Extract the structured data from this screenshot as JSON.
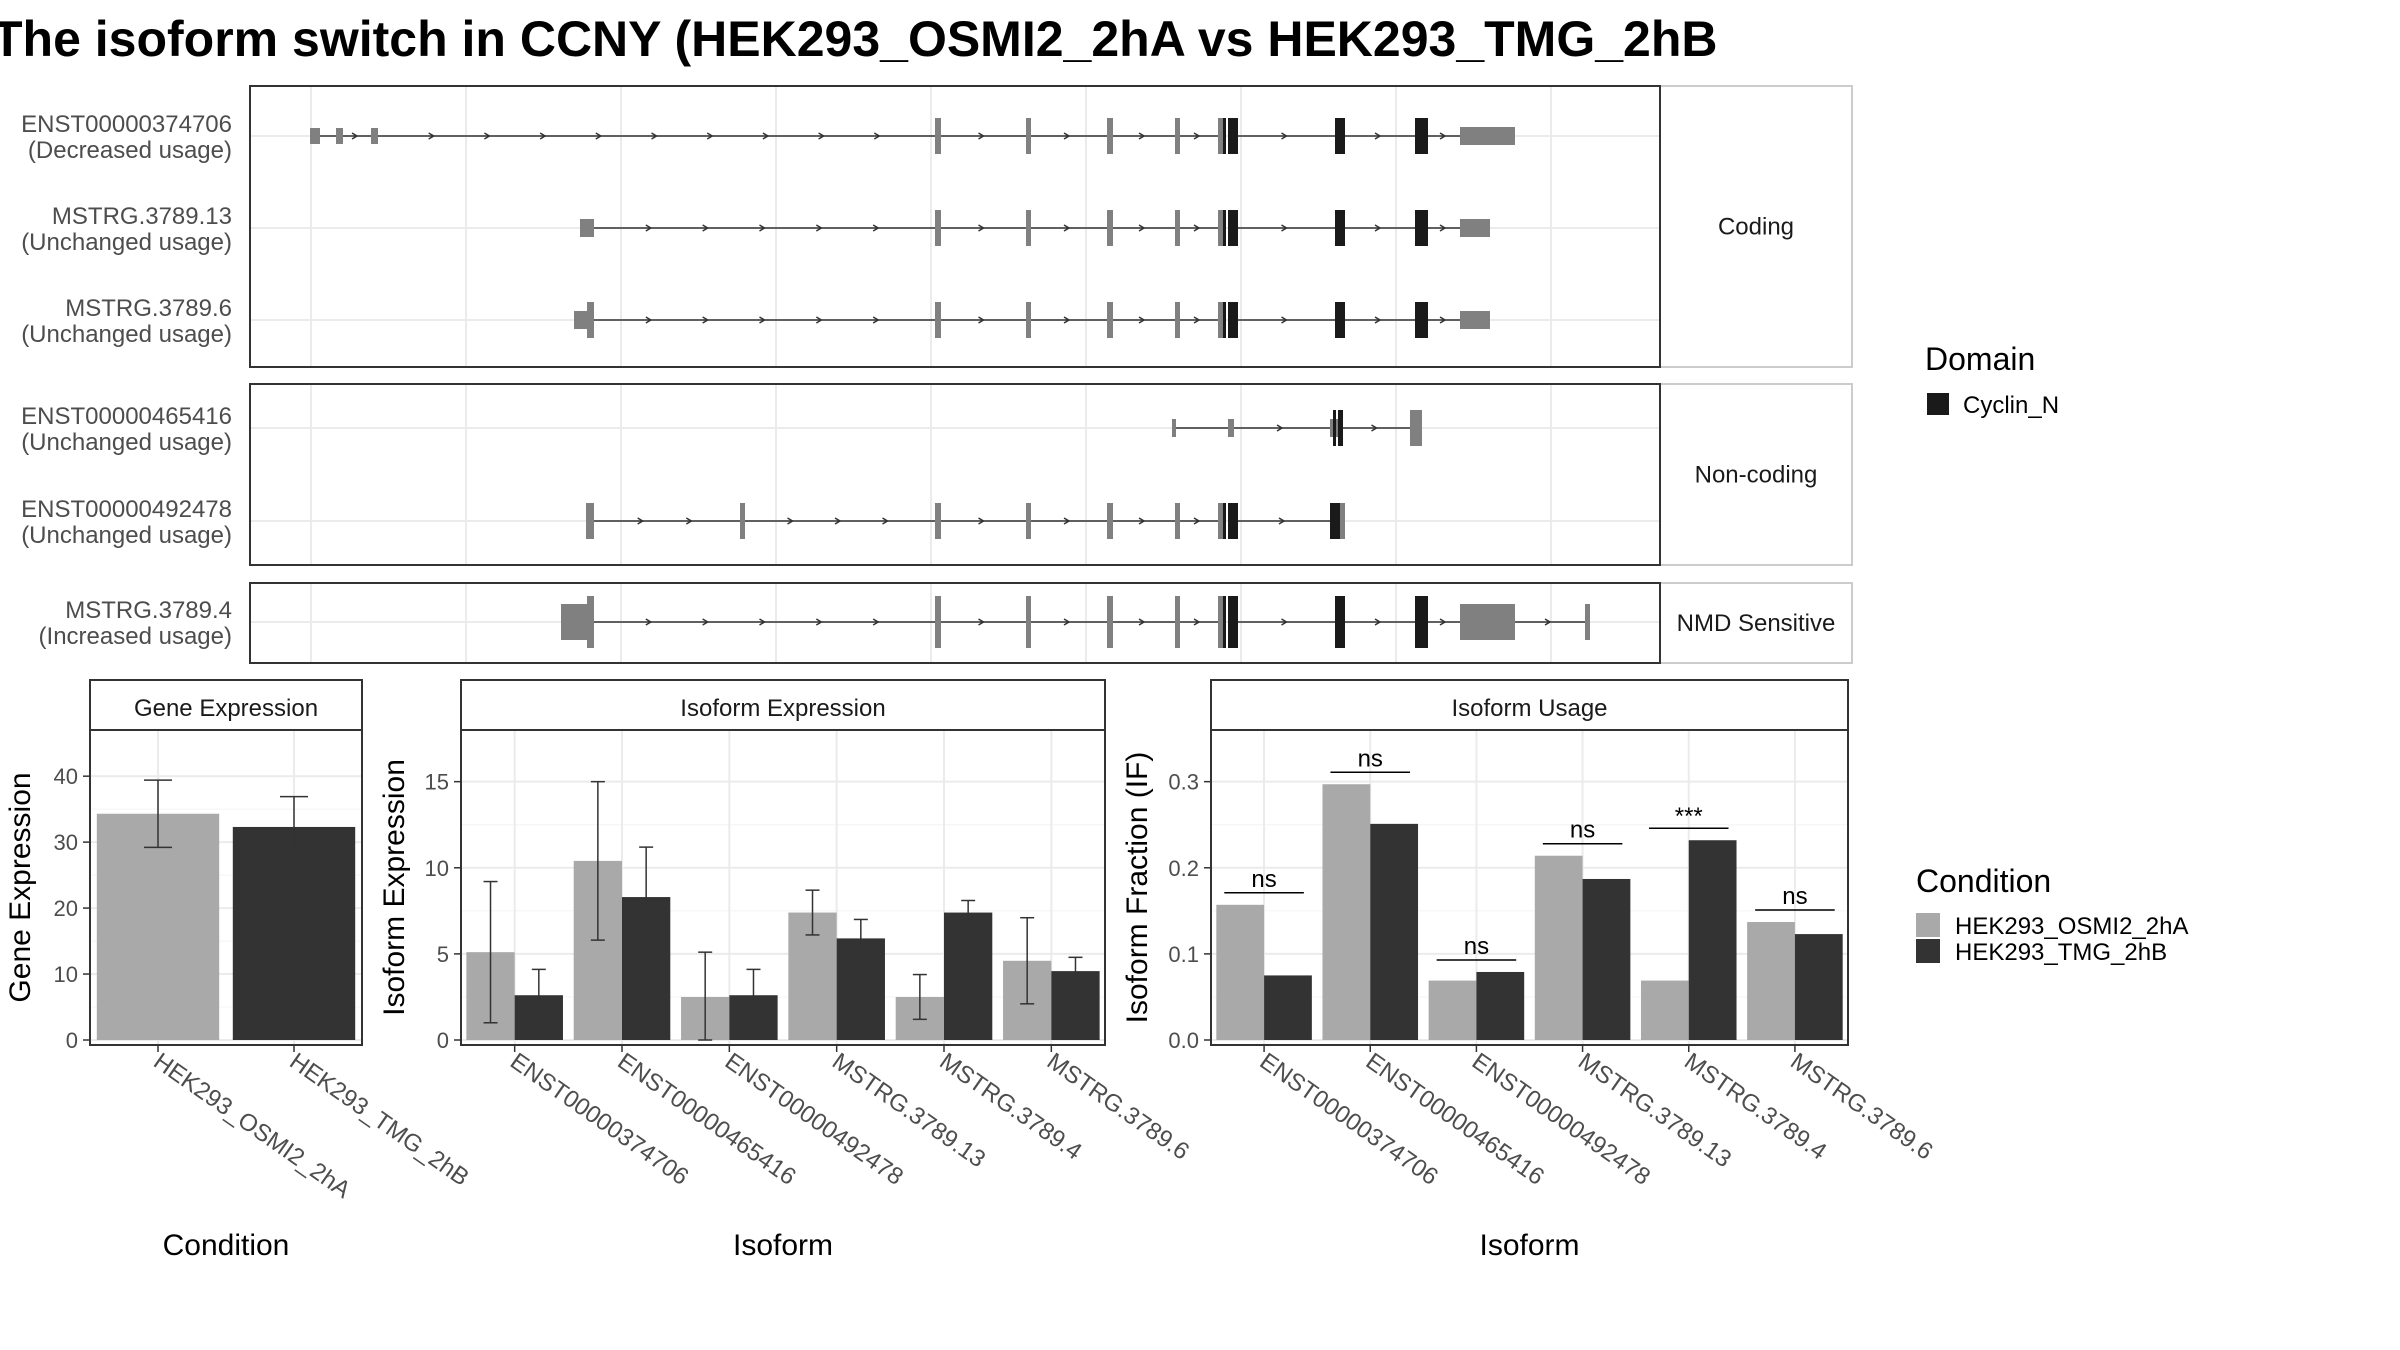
{
  "title": "The isoform switch in CCNY (HEK293_OSMI2_2hA vs HEK293_TMG_2hB",
  "colors": {
    "condition_a": "#a9a9a9",
    "condition_b": "#333333",
    "exon": "#808080",
    "domain": "#1a1a1a",
    "grid": "#ebebeb",
    "panel_border": "#333333"
  },
  "transcript_panels": [
    {
      "label": "Coding",
      "transcripts": [
        {
          "id": "ENST00000374706",
          "usage": "(Decreased usage)"
        },
        {
          "id": "MSTRG.3789.13",
          "usage": "(Unchanged usage)"
        },
        {
          "id": "MSTRG.3789.6",
          "usage": "(Unchanged usage)"
        }
      ]
    },
    {
      "label": "Non-coding",
      "transcripts": [
        {
          "id": "ENST00000465416",
          "usage": "(Unchanged usage)"
        },
        {
          "id": "ENST00000492478",
          "usage": "(Unchanged usage)"
        }
      ]
    },
    {
      "label": "NMD Sensitive",
      "transcripts": [
        {
          "id": "MSTRG.3789.4",
          "usage": "(Increased usage)"
        }
      ]
    }
  ],
  "domain_legend": {
    "title": "Domain",
    "items": [
      "Cyclin_N"
    ]
  },
  "condition_legend": {
    "title": "Condition",
    "items": [
      "HEK293_OSMI2_2hA",
      "HEK293_TMG_2hB"
    ]
  },
  "chart_data": [
    {
      "type": "bar",
      "title": "Gene Expression",
      "xlabel": "Condition",
      "ylabel": "Gene Expression",
      "categories": [
        "HEK293_OSMI2_2hA",
        "HEK293_TMG_2hB"
      ],
      "values": [
        34.3,
        32.3
      ],
      "error_low": [
        29.2,
        27.8
      ],
      "error_high": [
        39.4,
        36.9
      ],
      "ylim": [
        0,
        47
      ],
      "yticks": [
        0,
        10,
        20,
        30,
        40
      ]
    },
    {
      "type": "bar",
      "title": "Isoform Expression",
      "xlabel": "Isoform",
      "ylabel": "Isoform Expression",
      "categories": [
        "ENST00000374706",
        "ENST00000465416",
        "ENST00000492478",
        "MSTRG.3789.13",
        "MSTRG.3789.4",
        "MSTRG.3789.6"
      ],
      "series": [
        {
          "name": "HEK293_OSMI2_2hA",
          "values": [
            5.1,
            10.4,
            2.5,
            7.4,
            2.5,
            4.6
          ],
          "error_low": [
            1.0,
            5.8,
            0.0,
            6.1,
            1.2,
            2.1
          ],
          "error_high": [
            9.2,
            15.0,
            5.1,
            8.7,
            3.8,
            7.1
          ]
        },
        {
          "name": "HEK293_TMG_2hB",
          "values": [
            2.6,
            8.3,
            2.6,
            5.9,
            7.4,
            4.0
          ],
          "error_low": [
            1.1,
            5.4,
            1.1,
            4.8,
            6.7,
            3.3
          ],
          "error_high": [
            4.1,
            11.2,
            4.1,
            7.0,
            8.1,
            4.8
          ]
        }
      ],
      "ylim": [
        0,
        18
      ],
      "yticks": [
        0,
        5,
        10,
        15
      ]
    },
    {
      "type": "bar",
      "title": "Isoform Usage",
      "xlabel": "Isoform",
      "ylabel": "Isoform Fraction (IF)",
      "categories": [
        "ENST00000374706",
        "ENST00000465416",
        "ENST00000492478",
        "MSTRG.3789.13",
        "MSTRG.3789.4",
        "MSTRG.3789.6"
      ],
      "series": [
        {
          "name": "HEK293_OSMI2_2hA",
          "values": [
            0.157,
            0.297,
            0.069,
            0.214,
            0.069,
            0.137
          ]
        },
        {
          "name": "HEK293_TMG_2hB",
          "values": [
            0.075,
            0.251,
            0.079,
            0.187,
            0.232,
            0.123
          ]
        }
      ],
      "significance": [
        "ns",
        "ns",
        "ns",
        "ns",
        "***",
        "ns"
      ],
      "ylim": [
        0,
        0.36
      ],
      "yticks": [
        0.0,
        0.1,
        0.2,
        0.3
      ]
    }
  ]
}
